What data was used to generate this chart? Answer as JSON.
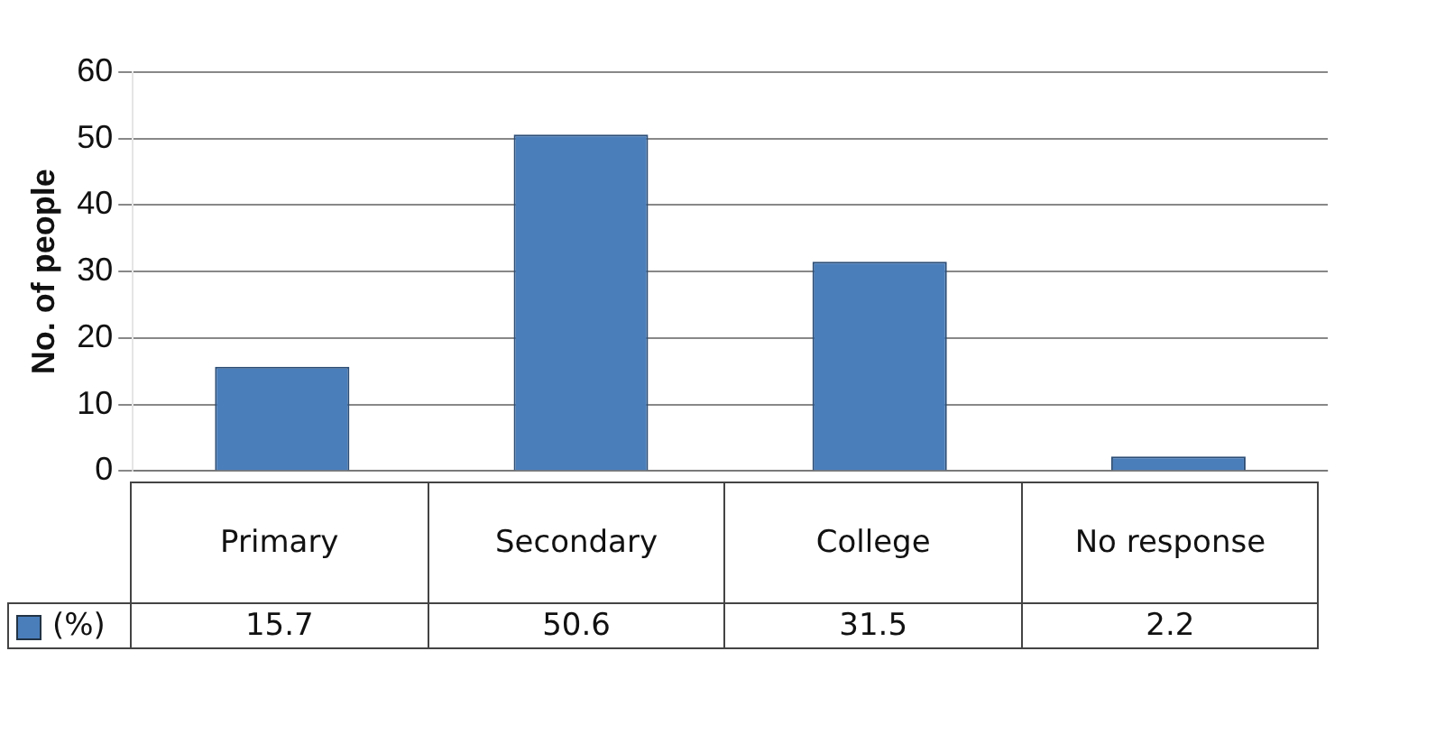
{
  "chart_data": {
    "type": "bar",
    "ylabel": "No. of people",
    "categories": [
      "Primary",
      "Secondary",
      "College",
      "No response"
    ],
    "series": [
      {
        "name": "(%)",
        "color": "#4a7ebb",
        "values": [
          15.7,
          50.6,
          31.5,
          2.2
        ]
      }
    ],
    "ylim": [
      0,
      60
    ],
    "yticks": [
      0,
      10,
      20,
      30,
      40,
      50,
      60
    ],
    "grid": "y",
    "data_labels": true,
    "legend": "bottom"
  }
}
